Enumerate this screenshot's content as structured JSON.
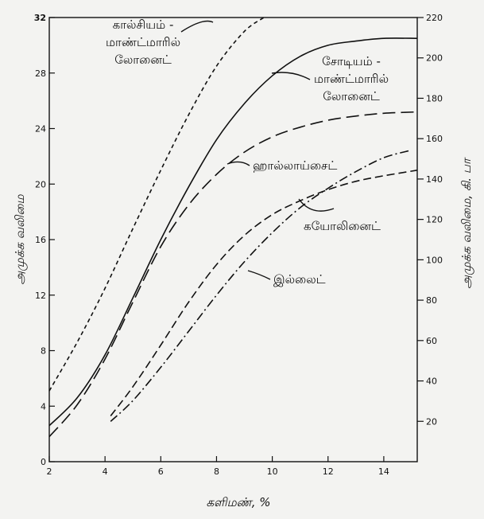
{
  "chart_data": {
    "type": "line",
    "title": "",
    "xlabel": "களிமண், %",
    "ylabel_left": "அமுக்க வலிமை",
    "ylabel_right": "அமுக்க வலிமை, கி. பா",
    "xlim": [
      2,
      15.2
    ],
    "ylim_left": [
      0,
      32
    ],
    "ylim_right": [
      0,
      220
    ],
    "x_ticks": [
      2,
      4,
      6,
      8,
      10,
      12,
      14
    ],
    "y_left_ticks": [
      0,
      4,
      8,
      12,
      16,
      20,
      24,
      28,
      32
    ],
    "y_right_ticks": [
      20,
      40,
      60,
      80,
      100,
      120,
      140,
      160,
      180,
      200,
      220
    ],
    "grid": false,
    "series": [
      {
        "name": "கால்சியம் - மாண்ட்மாரில் லோனைட்",
        "style": "short-dash",
        "points": [
          [
            2,
            5.1
          ],
          [
            3,
            8.6
          ],
          [
            4,
            12.5
          ],
          [
            5,
            16.8
          ],
          [
            6,
            21
          ],
          [
            7,
            25
          ],
          [
            8,
            28.5
          ],
          [
            9,
            31
          ],
          [
            9.7,
            32
          ]
        ]
      },
      {
        "name": "சோடியம் - மாண்ட்மாரில் லோனைட்",
        "style": "solid",
        "points": [
          [
            2,
            2.6
          ],
          [
            3,
            4.6
          ],
          [
            4,
            7.7
          ],
          [
            5,
            11.8
          ],
          [
            6,
            16
          ],
          [
            7,
            19.8
          ],
          [
            8,
            23.2
          ],
          [
            9,
            25.8
          ],
          [
            10,
            27.8
          ],
          [
            11,
            29.2
          ],
          [
            12,
            30
          ],
          [
            13,
            30.3
          ],
          [
            14,
            30.5
          ],
          [
            15.2,
            30.5
          ]
        ]
      },
      {
        "name": "ஹாலோய்சைட்",
        "style": "long-dash",
        "points": [
          [
            2,
            1.8
          ],
          [
            3,
            4.1
          ],
          [
            4,
            7.4
          ],
          [
            5,
            11.5
          ],
          [
            6,
            15.5
          ],
          [
            7,
            18.5
          ],
          [
            8,
            20.7
          ],
          [
            9,
            22.3
          ],
          [
            10,
            23.4
          ],
          [
            11,
            24.1
          ],
          [
            12,
            24.6
          ],
          [
            13,
            24.9
          ],
          [
            14,
            25.1
          ],
          [
            15.2,
            25.2
          ]
        ]
      },
      {
        "name": "கயோலினைட்",
        "style": "dash",
        "points": [
          [
            4.2,
            3.3
          ],
          [
            5,
            5.4
          ],
          [
            6,
            8.4
          ],
          [
            7,
            11.5
          ],
          [
            8,
            14.2
          ],
          [
            9,
            16.3
          ],
          [
            10,
            17.8
          ],
          [
            11,
            18.8
          ],
          [
            12,
            19.6
          ],
          [
            13,
            20.2
          ],
          [
            14,
            20.6
          ],
          [
            15.2,
            21
          ]
        ]
      },
      {
        "name": "இல்லைட்",
        "style": "dash-dot",
        "points": [
          [
            4.2,
            2.9
          ],
          [
            5,
            4.4
          ],
          [
            6,
            6.8
          ],
          [
            7,
            9.4
          ],
          [
            8,
            12
          ],
          [
            9,
            14.4
          ],
          [
            10,
            16.5
          ],
          [
            11,
            18.3
          ],
          [
            12,
            19.7
          ],
          [
            13,
            20.9
          ],
          [
            14,
            21.9
          ],
          [
            14.9,
            22.4
          ]
        ]
      }
    ],
    "annotations": [
      {
        "series": 0,
        "lines": [
          "கால்சியம் -",
          "மாண்ட்மாரில்",
          "லோனைட்"
        ]
      },
      {
        "series": 1,
        "lines": [
          "சோடியம் -",
          "மாண்ட்மாரில்",
          "லோனைட்"
        ]
      },
      {
        "series": 2,
        "lines": [
          "ஹால்லாய்சைட்"
        ]
      },
      {
        "series": 3,
        "lines": [
          "கயோலினைட்"
        ]
      },
      {
        "series": 4,
        "lines": [
          "இல்லைட்"
        ]
      }
    ]
  }
}
